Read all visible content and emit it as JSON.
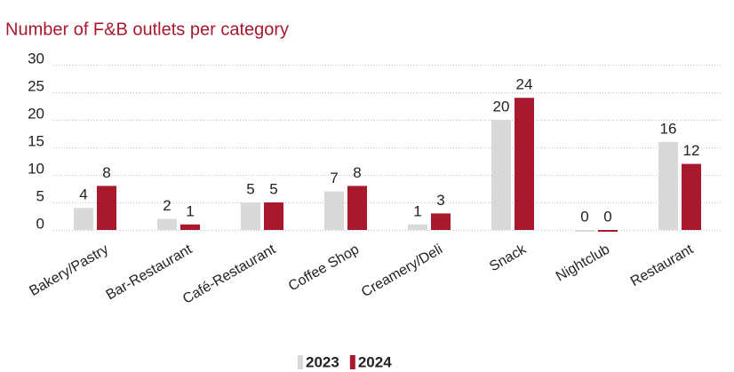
{
  "chart_data": {
    "type": "bar",
    "title": "Number of F&B outlets per category",
    "categories": [
      "Bakery/Pastry",
      "Bar-Restaurant",
      "Café-Restaurant",
      "Coffee Shop",
      "Creamery/Deli",
      "Snack",
      "Nightclub",
      "Restaurant"
    ],
    "series": [
      {
        "name": "2023",
        "color": "#d9d9d9",
        "values": [
          4,
          2,
          5,
          7,
          1,
          20,
          0,
          16
        ]
      },
      {
        "name": "2024",
        "color": "#a8192e",
        "values": [
          8,
          1,
          5,
          8,
          3,
          24,
          0,
          12
        ]
      }
    ],
    "ylim": [
      0,
      30
    ],
    "yticks": [
      0,
      5,
      10,
      15,
      20,
      25,
      30
    ],
    "grid": true,
    "legend": "bottom"
  }
}
